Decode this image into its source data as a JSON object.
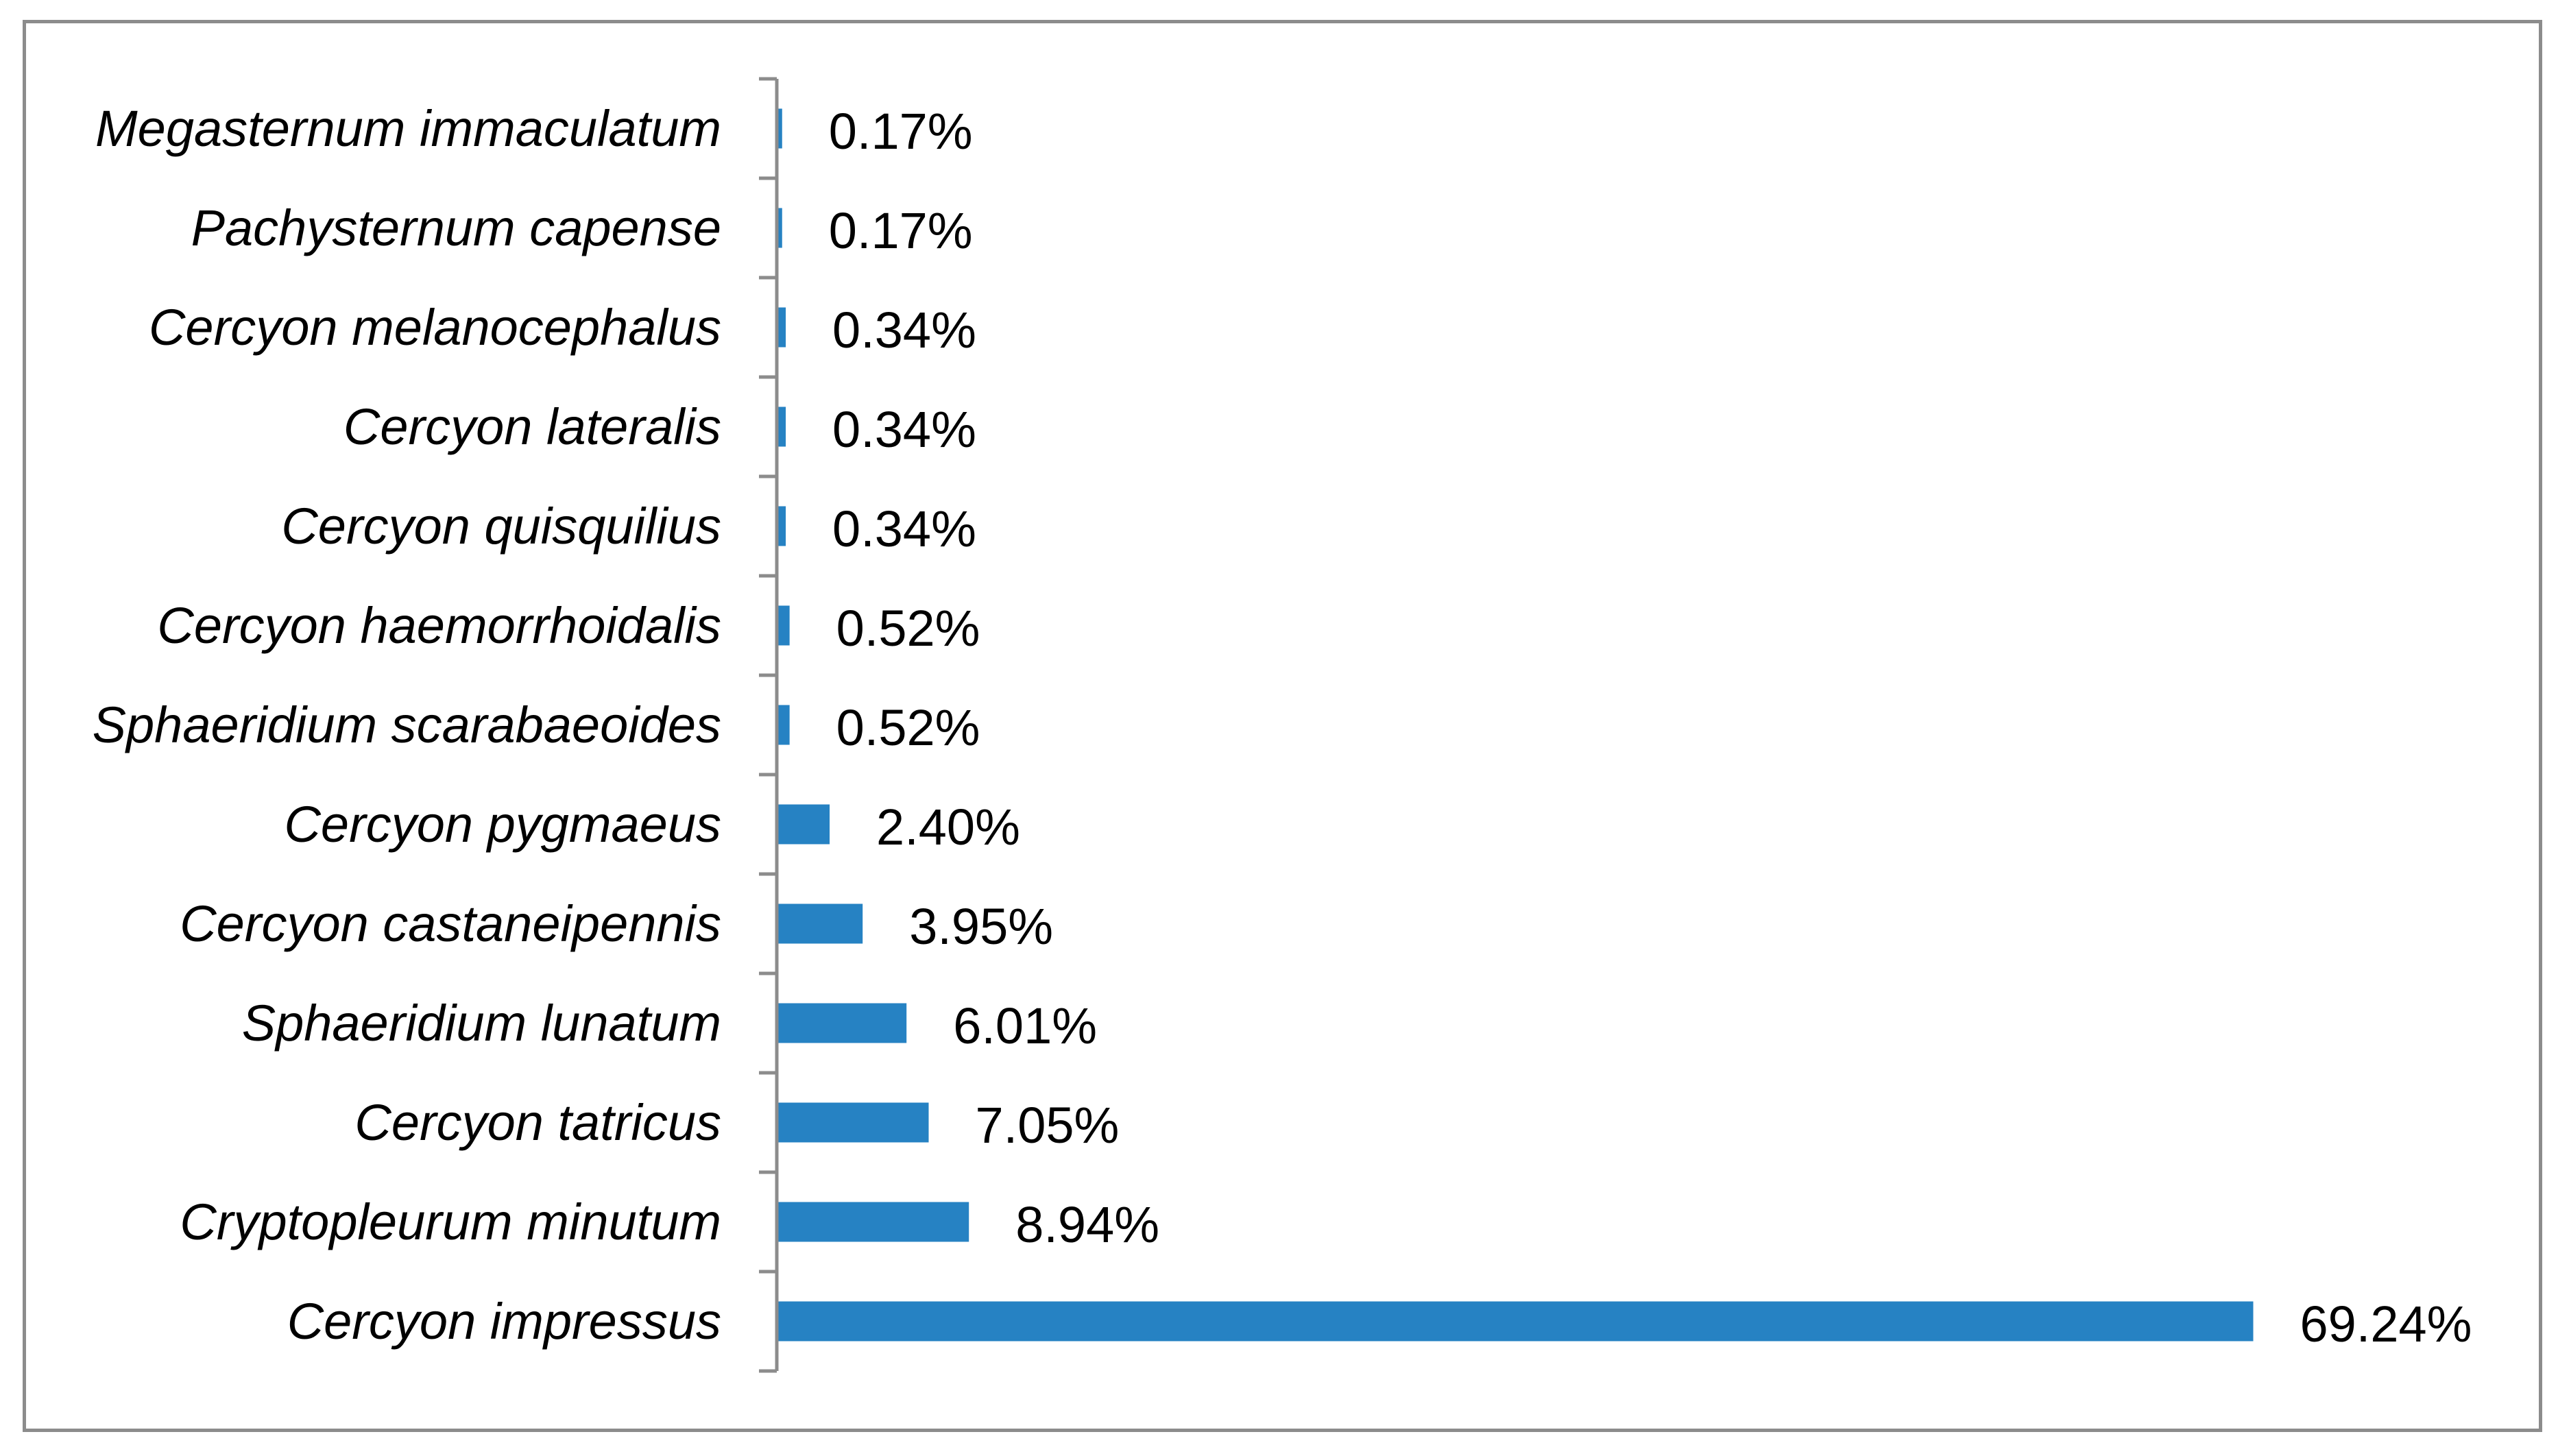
{
  "chart_data": {
    "type": "bar",
    "orientation": "horizontal",
    "categories": [
      "Megasternum immaculatum",
      "Pachysternum capense",
      "Cercyon melanocephalus",
      "Cercyon lateralis",
      "Cercyon quisquilius",
      "Cercyon haemorrhoidalis",
      "Sphaeridium scarabaeoides",
      "Cercyon pygmaeus",
      "Cercyon castaneipennis",
      "Sphaeridium lunatum",
      "Cercyon tatricus",
      "Cryptopleurum minutum",
      "Cercyon impressus"
    ],
    "values": [
      0.17,
      0.17,
      0.34,
      0.34,
      0.34,
      0.52,
      0.52,
      2.4,
      3.95,
      6.01,
      7.05,
      8.94,
      69.24
    ],
    "data_labels": [
      "0.17%",
      "0.17%",
      "0.34%",
      "0.34%",
      "0.34%",
      "0.52%",
      "0.52%",
      "2.40%",
      "3.95%",
      "6.01%",
      "7.05%",
      "8.94%",
      "69.24%"
    ],
    "unit": "%",
    "xlim": [
      0,
      70
    ],
    "title": "",
    "xlabel": "",
    "ylabel": "",
    "grid": false,
    "legend": false,
    "bar_color": "#2682c3",
    "axis_color": "#8c8c8c",
    "frame_color": "#8c8c8c"
  }
}
